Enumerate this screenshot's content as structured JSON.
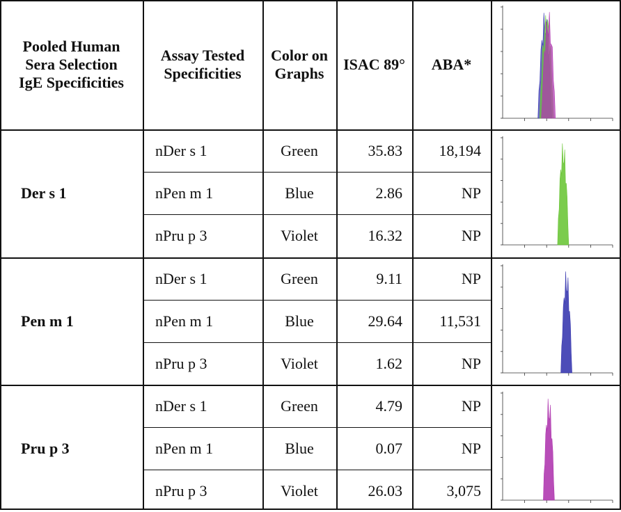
{
  "header": {
    "col1": [
      "Pooled Human",
      "Sera Selection",
      "IgE Specificities"
    ],
    "col2": [
      "Assay Tested",
      "Specificities"
    ],
    "col3": [
      "Color on",
      "Graphs"
    ],
    "col4": "ISAC 89°",
    "col5": "ABA*"
  },
  "groups": [
    {
      "selection": "Der s 1",
      "rows": [
        {
          "specificity": "nDer s 1",
          "color": "Green",
          "isac": "35.83",
          "aba": "18,194"
        },
        {
          "specificity": "nPen m 1",
          "color": "Blue",
          "isac": "2.86",
          "aba": "NP"
        },
        {
          "specificity": "nPru p 3",
          "color": "Violet",
          "isac": "16.32",
          "aba": "NP"
        }
      ],
      "graph": {
        "color": "#6dc63a",
        "peak_log": 2.75
      }
    },
    {
      "selection": "Pen m 1",
      "rows": [
        {
          "specificity": "nDer s 1",
          "color": "Green",
          "isac": "9.11",
          "aba": "NP"
        },
        {
          "specificity": "nPen m 1",
          "color": "Blue",
          "isac": "29.64",
          "aba": "11,531"
        },
        {
          "specificity": "nPru p 3",
          "color": "Violet",
          "isac": "1.62",
          "aba": "NP"
        }
      ],
      "graph": {
        "color": "#3a3ab0",
        "peak_log": 2.9
      }
    },
    {
      "selection": "Pru p 3",
      "rows": [
        {
          "specificity": "nDer s 1",
          "color": "Green",
          "isac": "4.79",
          "aba": "NP"
        },
        {
          "specificity": "nPen m 1",
          "color": "Blue",
          "isac": "0.07",
          "aba": "NP"
        },
        {
          "specificity": "nPru p 3",
          "color": "Violet",
          "isac": "26.03",
          "aba": "3,075"
        }
      ],
      "graph": {
        "color": "#b03ab0",
        "peak_log": 2.1
      }
    }
  ],
  "header_graph": {
    "colors": [
      "#3a3ab0",
      "#6dc63a",
      "#b03ab0"
    ],
    "peak_log": 2.0
  }
}
